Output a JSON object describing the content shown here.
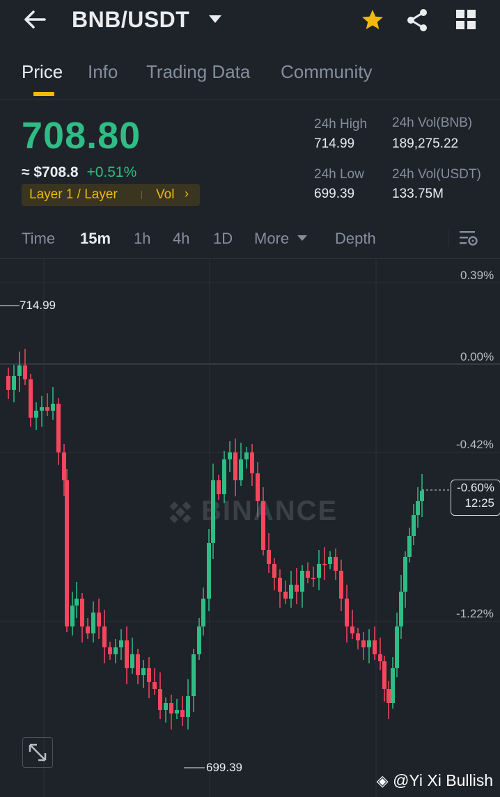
{
  "header": {
    "pair": "BNB/USDT",
    "back_icon": "arrow-left-icon",
    "star_color": "#f0b90b"
  },
  "tabs": [
    {
      "label": "Price",
      "active": true
    },
    {
      "label": "Info"
    },
    {
      "label": "Trading Data"
    },
    {
      "label": "Community"
    }
  ],
  "ticker": {
    "last_price": "708.80",
    "fiat_price": "≈ $708.8",
    "change": "+0.51%",
    "tag_label": "Layer 1 / Layer",
    "tag_vol": "Vol",
    "stats": {
      "high_label": "24h High",
      "high_value": "714.99",
      "low_label": "24h Low",
      "low_value": "699.39",
      "vol_bnb_label": "24h Vol(BNB)",
      "vol_bnb_value": "189,275.22",
      "vol_usdt_label": "24h Vol(USDT)",
      "vol_usdt_value": "133.75M"
    }
  },
  "timeframes": [
    "Time",
    "15m",
    "1h",
    "4h",
    "1D",
    "More",
    "Depth"
  ],
  "active_timeframe": "15m",
  "chart": {
    "axis_labels": [
      "0.39%",
      "0.00%",
      "-0.42%",
      "-1.22%"
    ],
    "high_label": "714.99",
    "low_label": "699.39",
    "last_change": "-0.60%",
    "countdown": "12:25",
    "watermark": "BINANCE",
    "up_color": "#2ebd85",
    "down_color": "#f6465d"
  },
  "chart_data": {
    "type": "candlestick",
    "ylim": [
      699.39,
      714.99
    ],
    "high": 714.99,
    "low": 699.39,
    "last": 708.8
  },
  "footer": {
    "watermark_text": "@Yi Xi Bullish"
  }
}
